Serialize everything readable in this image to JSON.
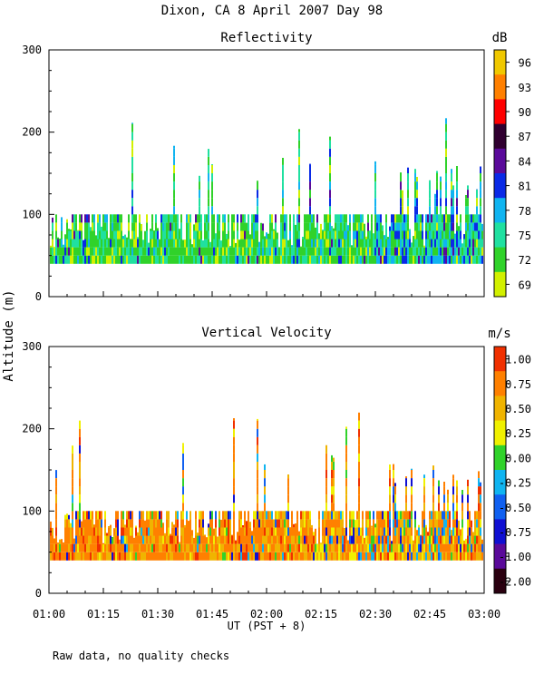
{
  "header": {
    "title": "Dixon, CA  8 April 2007  Day  98"
  },
  "footer": {
    "note": "Raw data, no quality checks"
  },
  "chart_data": [
    {
      "type": "heatmap",
      "title": "Reflectivity",
      "ylabel": "Altitude (m)",
      "ylim": [
        0,
        300
      ],
      "yticks": [
        "0",
        "100",
        "200",
        "300"
      ],
      "xlabel": "UT  (PST + 8)",
      "xlim": [
        "01:00",
        "03:00"
      ],
      "xticks": [
        "01:00",
        "01:15",
        "01:30",
        "01:45",
        "02:00",
        "02:15",
        "02:30",
        "02:45",
        "03:00"
      ],
      "colorbar": {
        "unit": "dB",
        "labels": [
          "96",
          "93",
          "90",
          "87",
          "84",
          "81",
          "78",
          "75",
          "72",
          "69"
        ],
        "colors": [
          "#f0c800",
          "#ff8000",
          "#ff0000",
          "#300030",
          "#5a0a9a",
          "#0a2ae6",
          "#10b4f0",
          "#20e0a0",
          "#30d22a",
          "#d2f000"
        ]
      },
      "data_extent": {
        "altitude_min": 40,
        "typical_top": 100,
        "max_top": 220
      }
    },
    {
      "type": "heatmap",
      "title": "Vertical Velocity",
      "ylabel": "Altitude (m)",
      "ylim": [
        0,
        300
      ],
      "yticks": [
        "0",
        "100",
        "200",
        "300"
      ],
      "xlabel": "UT  (PST + 8)",
      "xlim": [
        "01:00",
        "03:00"
      ],
      "xticks": [
        "01:00",
        "01:15",
        "01:30",
        "01:45",
        "02:00",
        "02:15",
        "02:30",
        "02:45",
        "03:00"
      ],
      "colorbar": {
        "unit": "m/s",
        "labels": [
          "1.00",
          "0.75",
          "0.50",
          "0.25",
          "0.00",
          "-0.25",
          "-0.50",
          "-0.75",
          "-1.00",
          "-2.00"
        ],
        "colors": [
          "#f03000",
          "#ff8000",
          "#f0b400",
          "#f0f000",
          "#30d22a",
          "#10b4f0",
          "#1060f0",
          "#1010d2",
          "#5a0a9a",
          "#2a0010"
        ]
      },
      "data_extent": {
        "altitude_min": 40,
        "typical_top": 100,
        "max_top": 220
      }
    }
  ]
}
